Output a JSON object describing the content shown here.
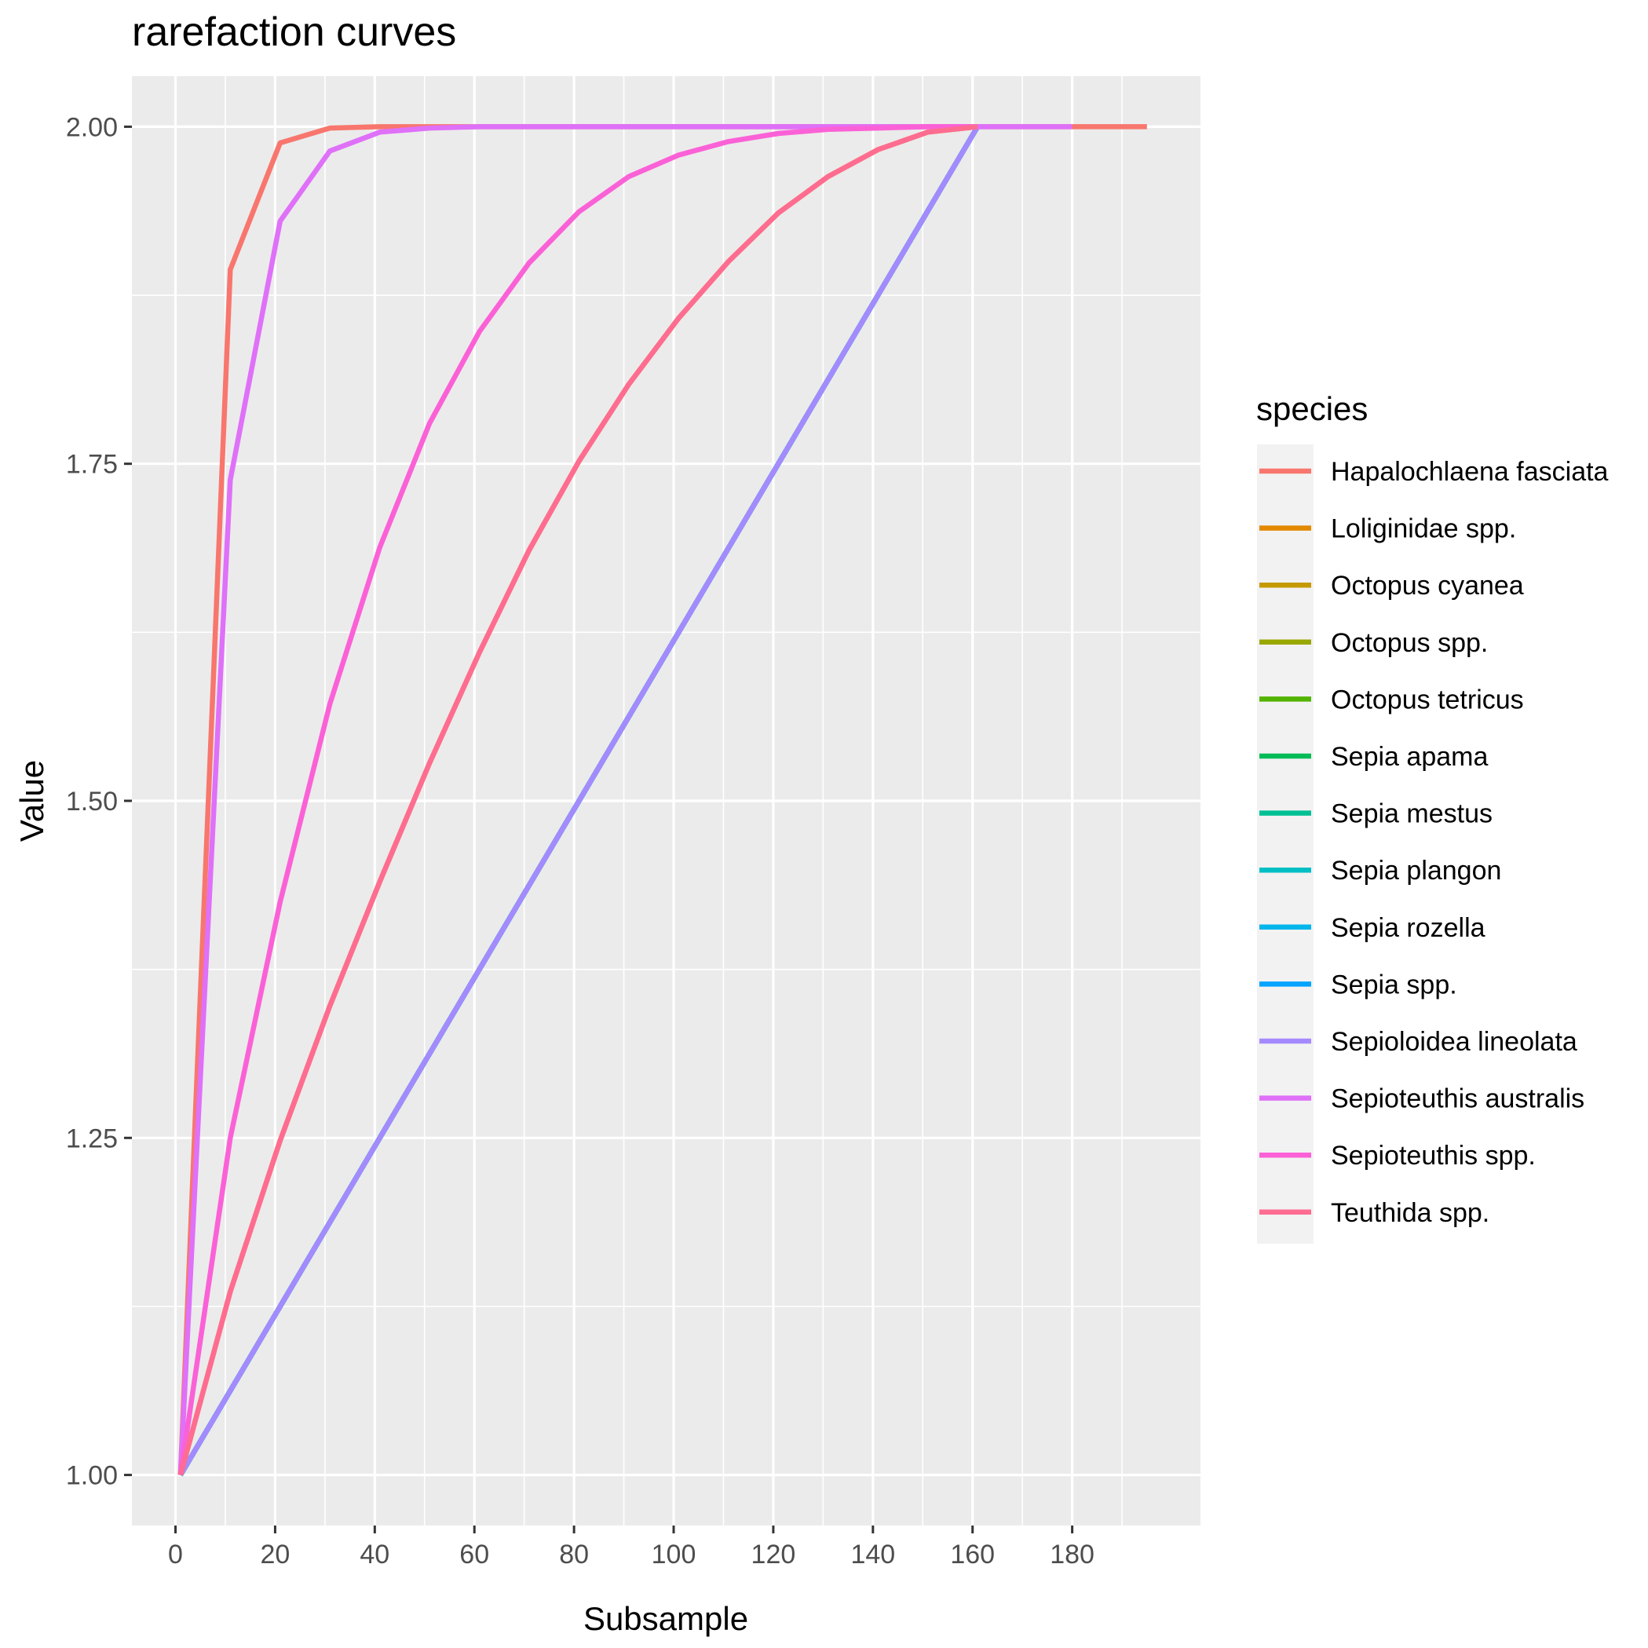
{
  "chart_data": {
    "type": "line",
    "title": "rarefaction curves",
    "xlabel": "Subsample",
    "ylabel": "Value",
    "xlim": [
      -8.75,
      205.75
    ],
    "ylim": [
      0.9625,
      2.0375
    ],
    "xticks": [
      0,
      20,
      40,
      60,
      80,
      100,
      120,
      140,
      160,
      180
    ],
    "yticks": [
      1.0,
      1.25,
      1.5,
      1.75,
      2.0
    ],
    "ytick_labels": [
      "1.00",
      "1.25",
      "1.50",
      "1.75",
      "2.00"
    ],
    "grid": true,
    "legend": {
      "title": "species",
      "position": "right"
    },
    "series": [
      {
        "name": "Hapalochlaena fasciata",
        "color": "#F8766D",
        "x": [
          1,
          11,
          21,
          31,
          41,
          51,
          61,
          71,
          81,
          91,
          101,
          111,
          121,
          131,
          141,
          151,
          161,
          171,
          181,
          191,
          195
        ],
        "y": [
          1.0,
          1.894,
          1.988,
          1.999,
          2.0,
          2.0,
          2.0,
          2.0,
          2.0,
          2.0,
          2.0,
          2.0,
          2.0,
          2.0,
          2.0,
          2.0,
          2.0,
          2.0,
          2.0,
          2.0,
          2.0
        ]
      },
      {
        "name": "Loliginidae spp.",
        "color": "#E38900",
        "x": [
          1,
          11,
          21,
          31,
          41,
          51,
          61,
          71,
          81,
          91,
          101,
          111,
          121,
          131,
          141,
          151,
          161
        ],
        "y": [
          1.0,
          1.136,
          1.248,
          1.348,
          1.44,
          1.528,
          1.61,
          1.686,
          1.752,
          1.809,
          1.858,
          1.9,
          1.936,
          1.963,
          1.983,
          1.996,
          2.0
        ]
      },
      {
        "name": "Octopus cyanea",
        "color": "#C49A00",
        "x": [
          1,
          161
        ],
        "y": [
          1.0,
          2.0
        ]
      },
      {
        "name": "Octopus spp.",
        "color": "#99A800",
        "x": [
          1,
          161
        ],
        "y": [
          1.0,
          2.0
        ]
      },
      {
        "name": "Octopus tetricus",
        "color": "#53B400",
        "x": [
          1,
          161
        ],
        "y": [
          1.0,
          2.0
        ]
      },
      {
        "name": "Sepia apama",
        "color": "#00BC56",
        "x": [
          1,
          161
        ],
        "y": [
          1.0,
          2.0
        ]
      },
      {
        "name": "Sepia mestus",
        "color": "#00C094",
        "x": [
          1,
          161
        ],
        "y": [
          1.0,
          2.0
        ]
      },
      {
        "name": "Sepia plangon",
        "color": "#00BFC4",
        "x": [
          1,
          161
        ],
        "y": [
          1.0,
          2.0
        ]
      },
      {
        "name": "Sepia rozella",
        "color": "#00B6EB",
        "x": [
          1,
          161
        ],
        "y": [
          1.0,
          2.0
        ]
      },
      {
        "name": "Sepia spp.",
        "color": "#06A4FF",
        "x": [
          1,
          161
        ],
        "y": [
          1.0,
          2.0
        ]
      },
      {
        "name": "Sepioloidea lineolata",
        "color": "#A58AFF",
        "x": [
          1,
          161
        ],
        "y": [
          1.0,
          2.0
        ]
      },
      {
        "name": "Sepioteuthis australis",
        "color": "#DF70F8",
        "x": [
          1,
          11,
          21,
          31,
          41,
          51,
          61,
          71,
          81,
          91,
          101,
          111,
          121,
          131,
          141,
          151,
          161,
          171,
          180
        ],
        "y": [
          1.0,
          1.738,
          1.93,
          1.982,
          1.996,
          1.999,
          2.0,
          2.0,
          2.0,
          2.0,
          2.0,
          2.0,
          2.0,
          2.0,
          2.0,
          2.0,
          2.0,
          2.0,
          2.0
        ]
      },
      {
        "name": "Sepioteuthis spp.",
        "color": "#FB61D7",
        "x": [
          1,
          11,
          21,
          31,
          41,
          51,
          61,
          71,
          81,
          91,
          101,
          111,
          121,
          131,
          141,
          151,
          161
        ],
        "y": [
          1.0,
          1.25,
          1.425,
          1.572,
          1.688,
          1.78,
          1.848,
          1.899,
          1.937,
          1.963,
          1.979,
          1.989,
          1.995,
          1.998,
          1.999,
          2.0,
          2.0
        ]
      },
      {
        "name": "Teuthida spp.",
        "color": "#FF6C91",
        "x": [
          1,
          11,
          21,
          31,
          41,
          51,
          61,
          71,
          81,
          91,
          101,
          111,
          121,
          131,
          141,
          151,
          161
        ],
        "y": [
          1.0,
          1.136,
          1.248,
          1.348,
          1.44,
          1.528,
          1.61,
          1.686,
          1.752,
          1.809,
          1.858,
          1.9,
          1.936,
          1.963,
          1.983,
          1.996,
          2.0
        ]
      }
    ]
  }
}
